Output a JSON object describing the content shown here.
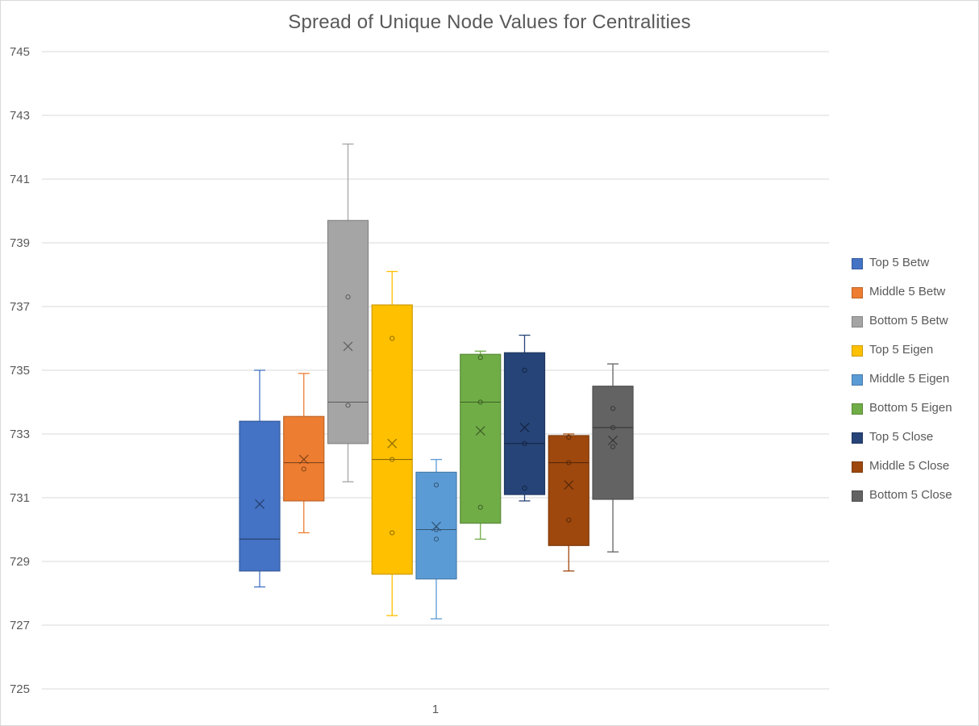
{
  "chart_data": {
    "type": "box",
    "title": "Spread of Unique Node Values for Centralities",
    "xlabel": "",
    "ylabel": "",
    "categories": [
      "1"
    ],
    "ylim": [
      725,
      745
    ],
    "yticks": [
      725,
      727,
      729,
      731,
      733,
      735,
      737,
      739,
      741,
      743,
      745
    ],
    "grid": true,
    "legend_position": "right",
    "series": [
      {
        "name": "Top 5 Betw",
        "color": "#4472C4",
        "whisker_low": 728.2,
        "q1": 728.7,
        "median": 729.7,
        "q3": 733.4,
        "whisker_high": 735.0,
        "mean": 730.8,
        "points": []
      },
      {
        "name": "Middle 5 Betw",
        "color": "#ED7D31",
        "whisker_low": 729.9,
        "q1": 730.9,
        "median": 732.1,
        "q3": 733.55,
        "whisker_high": 734.9,
        "mean": 732.2,
        "points": [
          731.9
        ]
      },
      {
        "name": "Bottom 5 Betw",
        "color": "#A5A5A5",
        "whisker_low": 731.5,
        "q1": 732.7,
        "median": 734.0,
        "q3": 739.7,
        "whisker_high": 742.1,
        "mean": 735.75,
        "points": [
          737.3,
          733.9
        ]
      },
      {
        "name": "Top 5 Eigen",
        "color": "#FFC000",
        "whisker_low": 727.3,
        "q1": 728.6,
        "median": 732.2,
        "q3": 737.05,
        "whisker_high": 738.1,
        "mean": 732.7,
        "points": [
          736.0,
          732.2,
          729.9
        ]
      },
      {
        "name": "Middle 5 Eigen",
        "color": "#5B9BD5",
        "whisker_low": 727.2,
        "q1": 728.45,
        "median": 730.0,
        "q3": 731.8,
        "whisker_high": 732.2,
        "mean": 730.1,
        "points": [
          731.4,
          730.0,
          729.7
        ]
      },
      {
        "name": "Bottom 5 Eigen",
        "color": "#70AD47",
        "whisker_low": 729.7,
        "q1": 730.2,
        "median": 734.0,
        "q3": 735.5,
        "whisker_high": 735.6,
        "mean": 733.1,
        "points": [
          735.4,
          734.0,
          730.7
        ]
      },
      {
        "name": "Top 5 Close",
        "color": "#264478",
        "whisker_low": 730.9,
        "q1": 731.1,
        "median": 732.7,
        "q3": 735.55,
        "whisker_high": 736.1,
        "mean": 733.2,
        "points": [
          735.0,
          732.7,
          731.3
        ]
      },
      {
        "name": "Middle 5 Close",
        "color": "#9E480E",
        "whisker_low": 728.7,
        "q1": 729.5,
        "median": 732.1,
        "q3": 732.95,
        "whisker_high": 733.0,
        "mean": 731.4,
        "points": [
          732.9,
          732.1,
          730.3
        ]
      },
      {
        "name": "Bottom 5 Close",
        "color": "#636363",
        "whisker_low": 729.3,
        "q1": 730.95,
        "median": 733.2,
        "q3": 734.5,
        "whisker_high": 735.2,
        "mean": 732.8,
        "points": [
          733.8,
          733.2,
          732.6
        ]
      }
    ]
  }
}
